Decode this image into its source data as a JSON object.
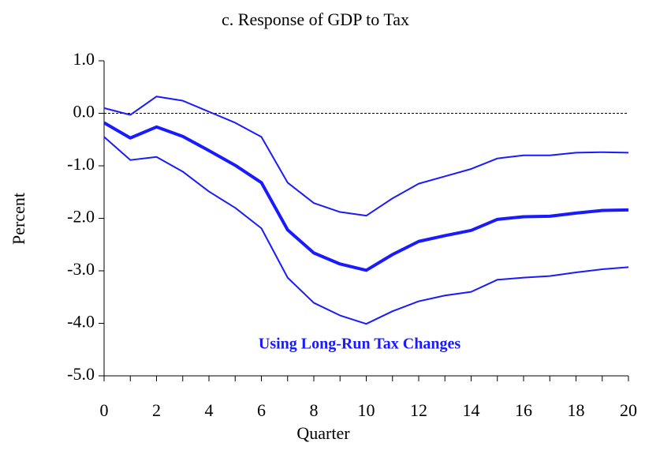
{
  "chart_data": {
    "type": "line",
    "title": "c.  Response of GDP to Tax",
    "xlabel": "Quarter",
    "ylabel": "Percent",
    "annotation": "Using Long-Run Tax Changes",
    "annotation_color": "#1a1aff",
    "x": [
      0,
      1,
      2,
      3,
      4,
      5,
      6,
      7,
      8,
      9,
      10,
      11,
      12,
      13,
      14,
      15,
      16,
      17,
      18,
      19,
      20
    ],
    "series": [
      {
        "color": "#1a1aff",
        "line_width": 2,
        "values": [
          0.1,
          -0.03,
          0.32,
          0.24,
          0.03,
          -0.18,
          -0.45,
          -1.32,
          -1.71,
          -1.88,
          -1.95,
          -1.62,
          -1.34,
          -1.2,
          -1.06,
          -0.86,
          -0.8,
          -0.8,
          -0.75,
          -0.74,
          -0.75
        ]
      },
      {
        "color": "#1a1aff",
        "line_width": 4,
        "values": [
          -0.18,
          -0.47,
          -0.26,
          -0.44,
          -0.71,
          -0.99,
          -1.32,
          -2.22,
          -2.66,
          -2.87,
          -2.99,
          -2.69,
          -2.44,
          -2.33,
          -2.23,
          -2.02,
          -1.97,
          -1.96,
          -1.9,
          -1.85,
          -1.84
        ]
      },
      {
        "color": "#1a1aff",
        "line_width": 2,
        "values": [
          -0.45,
          -0.89,
          -0.83,
          -1.11,
          -1.49,
          -1.8,
          -2.19,
          -3.13,
          -3.61,
          -3.85,
          -4.01,
          -3.77,
          -3.58,
          -3.47,
          -3.4,
          -3.17,
          -3.13,
          -3.1,
          -3.03,
          -2.97,
          -2.93
        ]
      }
    ],
    "xlim": [
      0,
      20
    ],
    "xticks": [
      0,
      2,
      4,
      6,
      8,
      10,
      12,
      14,
      16,
      18,
      20
    ],
    "ylim": [
      -5,
      1
    ],
    "yticks": [
      {
        "value": 1,
        "label": "1.0"
      },
      {
        "value": 0,
        "label": "0.0"
      },
      {
        "value": -1,
        "label": "-1.0"
      },
      {
        "value": -2,
        "label": "-2.0"
      },
      {
        "value": -3,
        "label": "-3.0"
      },
      {
        "value": -4,
        "label": "-4.0"
      },
      {
        "value": -5,
        "label": "-5.0"
      }
    ],
    "zero_line": true
  }
}
